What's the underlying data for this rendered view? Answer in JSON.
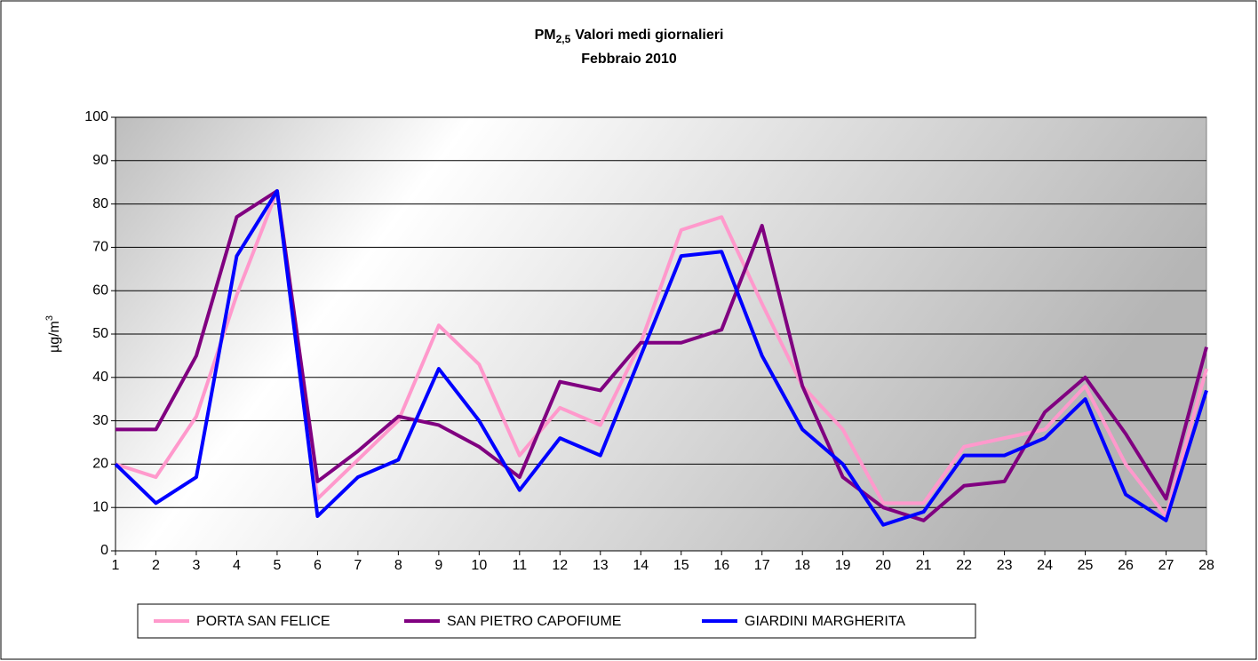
{
  "chart_data": {
    "type": "line",
    "title": {
      "main": "PM",
      "subscript": "2,5",
      "rest": "Valori medi giornalieri"
    },
    "subtitle": "Febbraio 2010",
    "ylabel": {
      "main": "µg/m",
      "superscript": "3"
    },
    "x": [
      1,
      2,
      3,
      4,
      5,
      6,
      7,
      8,
      9,
      10,
      11,
      12,
      13,
      14,
      15,
      16,
      17,
      18,
      19,
      20,
      21,
      22,
      23,
      24,
      25,
      26,
      27,
      28
    ],
    "xlim": [
      1,
      28
    ],
    "xticks": [
      1,
      2,
      3,
      4,
      5,
      6,
      7,
      8,
      9,
      10,
      11,
      12,
      13,
      14,
      15,
      16,
      17,
      18,
      19,
      20,
      21,
      22,
      23,
      24,
      25,
      26,
      27,
      28
    ],
    "ylim": [
      0,
      100
    ],
    "yticks": [
      0,
      10,
      20,
      30,
      40,
      50,
      60,
      70,
      80,
      90,
      100
    ],
    "grid": true,
    "legend": "bottom",
    "series": [
      {
        "name": "PORTA SAN FELICE",
        "color": "#ff99cc",
        "values": [
          20,
          17,
          31,
          59,
          83,
          12,
          21,
          30,
          52,
          43,
          22,
          33,
          29,
          48,
          74,
          77,
          57,
          38,
          28,
          11,
          11,
          24,
          26,
          28,
          38,
          20,
          8,
          42
        ]
      },
      {
        "name": "SAN PIETRO CAPOFIUME",
        "color": "#800080",
        "values": [
          28,
          28,
          45,
          77,
          83,
          16,
          23,
          31,
          29,
          24,
          17,
          39,
          37,
          48,
          48,
          51,
          75,
          38,
          17,
          10,
          7,
          15,
          16,
          32,
          40,
          27,
          12,
          47
        ]
      },
      {
        "name": "GIARDINI MARGHERITA",
        "color": "#0000ff",
        "values": [
          20,
          11,
          17,
          68,
          83,
          8,
          17,
          21,
          42,
          30,
          14,
          26,
          22,
          45,
          68,
          69,
          45,
          28,
          20,
          6,
          9,
          22,
          22,
          26,
          35,
          13,
          7,
          37
        ]
      }
    ]
  }
}
